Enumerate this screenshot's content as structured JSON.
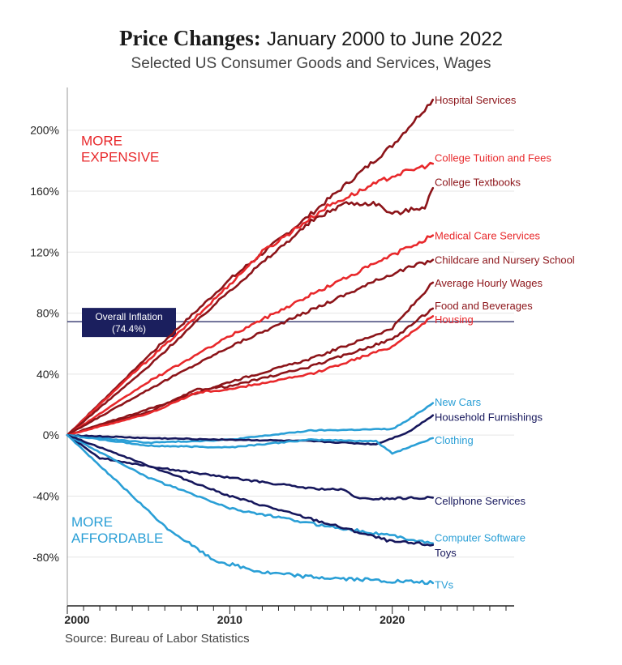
{
  "colors": {
    "bright_red": "#e8282b",
    "dark_red": "#8c1419",
    "light_blue": "#2a9fd6",
    "navy": "#16175c",
    "grid": "#e5e5e5",
    "inflation_box": "#1b1f5e"
  },
  "chart_data": {
    "type": "line",
    "title_bold": "Price Changes:",
    "title_rest": "January 2000 to June 2022",
    "subtitle": "Selected US Consumer Goods and Services, Wages",
    "source": "Source: Bureau of Labor Statistics",
    "xlim": [
      2000,
      2027.5
    ],
    "ylim": [
      -112,
      228
    ],
    "y_ticks": [
      200,
      160,
      120,
      80,
      40,
      0,
      -40,
      -80
    ],
    "y_tick_labels": [
      "200%",
      "160%",
      "120%",
      "80%",
      "40%",
      "0%",
      "-40%",
      "-80%"
    ],
    "x_tick_labels": [
      {
        "year": 2000,
        "label": "2000"
      },
      {
        "year": 2010,
        "label": "2010"
      },
      {
        "year": 2020,
        "label": "2020"
      }
    ],
    "overall_inflation": {
      "value": 74.4,
      "label_line1": "Overall Inflation",
      "label_line2": "(74.4%)"
    },
    "annotations": {
      "more_expensive": [
        "MORE",
        "EXPENSIVE"
      ],
      "more_affordable": [
        "MORE",
        "AFFORDABLE"
      ]
    },
    "series": [
      {
        "name": "Hospital Services",
        "color": "dark_red",
        "label_y": 220,
        "x": [
          2000,
          2005,
          2010,
          2015,
          2020,
          2022.5
        ],
        "values": [
          0,
          52,
          102,
          145,
          190,
          220
        ]
      },
      {
        "name": "College Tuition and Fees",
        "color": "bright_red",
        "label_y": 182,
        "x": [
          2000,
          2004,
          2008,
          2012,
          2016,
          2020,
          2022.5
        ],
        "values": [
          0,
          40,
          78,
          120,
          150,
          170,
          178
        ]
      },
      {
        "name": "College Textbooks",
        "color": "dark_red",
        "label_y": 166,
        "x": [
          2000,
          2005,
          2010,
          2015,
          2017,
          2019,
          2020,
          2022,
          2022.5
        ],
        "values": [
          0,
          45,
          95,
          140,
          152,
          152,
          145,
          150,
          162
        ]
      },
      {
        "name": "Medical Care Services",
        "color": "bright_red",
        "label_y": 131,
        "x": [
          2000,
          2005,
          2010,
          2015,
          2020,
          2022.5
        ],
        "values": [
          0,
          35,
          65,
          92,
          118,
          131
        ]
      },
      {
        "name": "Childcare and Nursery School",
        "color": "dark_red",
        "label_y": 115,
        "x": [
          2000,
          2005,
          2010,
          2015,
          2020,
          2022.5
        ],
        "values": [
          0,
          30,
          58,
          82,
          106,
          115
        ]
      },
      {
        "name": "Average Hourly Wages",
        "color": "dark_red",
        "label_y": 100,
        "x": [
          2000,
          2005,
          2010,
          2015,
          2020,
          2022.5
        ],
        "values": [
          0,
          17,
          35,
          50,
          70,
          100
        ]
      },
      {
        "name": "Food and Beverages",
        "color": "dark_red",
        "label_y": 85,
        "x": [
          2000,
          2005,
          2008,
          2010,
          2015,
          2020,
          2022.5
        ],
        "values": [
          0,
          15,
          30,
          32,
          45,
          63,
          83
        ]
      },
      {
        "name": "Housing",
        "color": "bright_red",
        "label_y": 76,
        "x": [
          2000,
          2005,
          2008,
          2010,
          2015,
          2020,
          2022.5
        ],
        "values": [
          0,
          14,
          28,
          30,
          40,
          58,
          78
        ]
      },
      {
        "name": "New Cars",
        "color": "light_blue",
        "label_y": 22,
        "x": [
          2000,
          2005,
          2010,
          2015,
          2020,
          2021,
          2022.5
        ],
        "values": [
          0,
          -5,
          -3,
          3,
          4,
          10,
          21
        ]
      },
      {
        "name": "Household Furnishings",
        "color": "navy",
        "label_y": 12,
        "x": [
          2000,
          2005,
          2010,
          2015,
          2019,
          2021,
          2022.5
        ],
        "values": [
          0,
          -2,
          -3,
          -4,
          -6,
          2,
          13
        ]
      },
      {
        "name": "Clothing",
        "color": "light_blue",
        "label_y": -3,
        "x": [
          2000,
          2005,
          2010,
          2015,
          2019,
          2020,
          2022.5
        ],
        "values": [
          0,
          -7,
          -8,
          -3,
          -4,
          -12,
          -2
        ]
      },
      {
        "name": "Cellphone Services",
        "color": "navy",
        "label_y": -43,
        "x": [
          2000,
          2002,
          2006,
          2010,
          2015,
          2017,
          2018,
          2022.5
        ],
        "values": [
          0,
          -15,
          -22,
          -28,
          -35,
          -36,
          -42,
          -41
        ]
      },
      {
        "name": "Computer Software",
        "color": "light_blue",
        "label_y": -67,
        "x": [
          2000,
          2005,
          2010,
          2015,
          2020,
          2022.5
        ],
        "values": [
          0,
          -28,
          -48,
          -58,
          -66,
          -71
        ]
      },
      {
        "name": "Toys",
        "color": "navy",
        "label_y": -77,
        "x": [
          2000,
          2005,
          2010,
          2015,
          2020,
          2022.5
        ],
        "values": [
          0,
          -20,
          -40,
          -55,
          -70,
          -72
        ]
      },
      {
        "name": "TVs",
        "color": "light_blue",
        "label_y": -98,
        "x": [
          2000,
          2003,
          2006,
          2009,
          2012,
          2015,
          2020,
          2022.5
        ],
        "values": [
          0,
          -30,
          -60,
          -82,
          -90,
          -93,
          -96,
          -97
        ]
      }
    ]
  }
}
